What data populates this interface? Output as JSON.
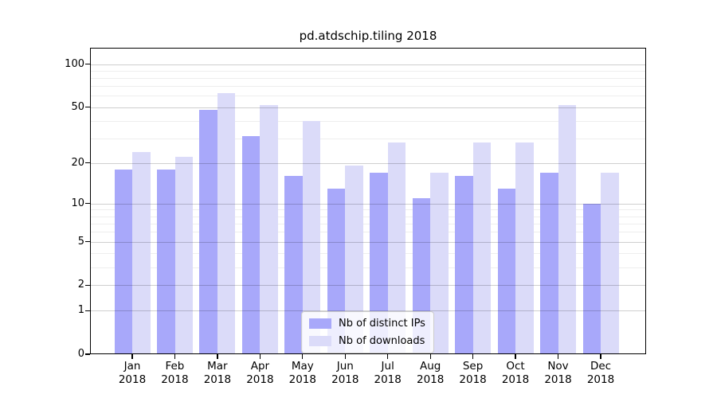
{
  "chart_data": {
    "type": "bar",
    "title": "pd.atdschip.tiling 2018",
    "year": "2018",
    "categories": [
      "Jan",
      "Feb",
      "Mar",
      "Apr",
      "May",
      "Jun",
      "Jul",
      "Aug",
      "Sep",
      "Oct",
      "Nov",
      "Dec"
    ],
    "series": [
      {
        "name": "Nb of distinct IPs",
        "color": "#a8a8fa",
        "values": [
          18,
          18,
          48,
          31,
          16,
          13,
          17,
          11,
          16,
          13,
          17,
          10
        ]
      },
      {
        "name": "Nb of downloads",
        "color": "#dbdbf9",
        "values": [
          24,
          22,
          63,
          52,
          40,
          19,
          28,
          17,
          28,
          28,
          52,
          17
        ]
      }
    ],
    "yscale": "log1p",
    "ylim": [
      0,
      130
    ],
    "yticks": [
      0,
      1,
      2,
      5,
      10,
      20,
      50,
      100
    ],
    "yticks_minor": [
      3,
      4,
      6,
      7,
      8,
      9,
      30,
      40,
      60,
      70,
      80,
      90
    ],
    "grid": true,
    "legend_position": "lower center",
    "xlabel": "",
    "ylabel": ""
  }
}
